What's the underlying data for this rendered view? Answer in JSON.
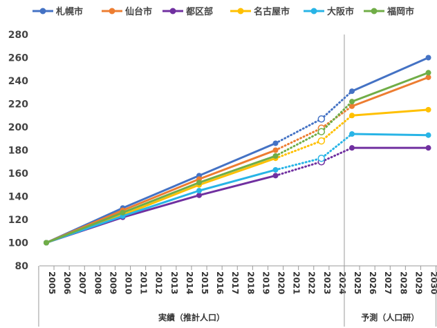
{
  "chart_data": {
    "type": "line",
    "title": "",
    "xlabel": "",
    "ylabel": "",
    "x": [
      "2005",
      "2006",
      "2007",
      "2008",
      "2009",
      "2010",
      "2011",
      "2012",
      "2013",
      "2014",
      "2015",
      "2016",
      "2017",
      "2018",
      "2019",
      "2020",
      "2021",
      "2022",
      "2023",
      "2024",
      "2025",
      "2026",
      "2027",
      "2028",
      "2029",
      "2030"
    ],
    "ylim": [
      80,
      280
    ],
    "yticks": [
      80,
      100,
      120,
      140,
      160,
      180,
      200,
      220,
      240,
      260,
      280
    ],
    "grid": false,
    "legend_position": "top",
    "x_groups": [
      {
        "label": "実績（推計人口）",
        "from": "2005",
        "to": "2024"
      },
      {
        "label": "予測（人口研）",
        "from": "2025",
        "to": "2030"
      }
    ],
    "series": [
      {
        "name": "札幌市",
        "color": "#4472C4",
        "actual": {
          "2005": 100,
          "2010": 130,
          "2015": 158,
          "2020": 186
        },
        "estimate": {
          "2023": 207
        },
        "forecast": {
          "2025": 231,
          "2030": 260
        }
      },
      {
        "name": "仙台市",
        "color": "#ED7D31",
        "actual": {
          "2005": 100,
          "2010": 128,
          "2015": 155,
          "2020": 180
        },
        "estimate": {
          "2023": 199
        },
        "forecast": {
          "2025": 218,
          "2030": 243
        }
      },
      {
        "name": "都区部",
        "color": "#7030A0",
        "actual": {
          "2005": 100,
          "2010": 122,
          "2015": 141,
          "2020": 158
        },
        "estimate": {
          "2023": 170
        },
        "forecast": {
          "2025": 182,
          "2030": 182
        }
      },
      {
        "name": "名古屋市",
        "color": "#FFC000",
        "actual": {
          "2005": 100,
          "2010": 124,
          "2015": 150,
          "2020": 173
        },
        "estimate": {
          "2023": 188
        },
        "forecast": {
          "2025": 210,
          "2030": 215
        }
      },
      {
        "name": "大阪市",
        "color": "#28B4E6",
        "actual": {
          "2005": 100,
          "2010": 123,
          "2015": 145,
          "2020": 163
        },
        "estimate": {
          "2023": 173
        },
        "forecast": {
          "2025": 194,
          "2030": 193
        }
      },
      {
        "name": "福岡市",
        "color": "#70AD47",
        "actual": {
          "2005": 100,
          "2010": 126,
          "2015": 152,
          "2020": 175
        },
        "estimate": {
          "2023": 196
        },
        "forecast": {
          "2025": 222,
          "2030": 247
        }
      }
    ]
  }
}
